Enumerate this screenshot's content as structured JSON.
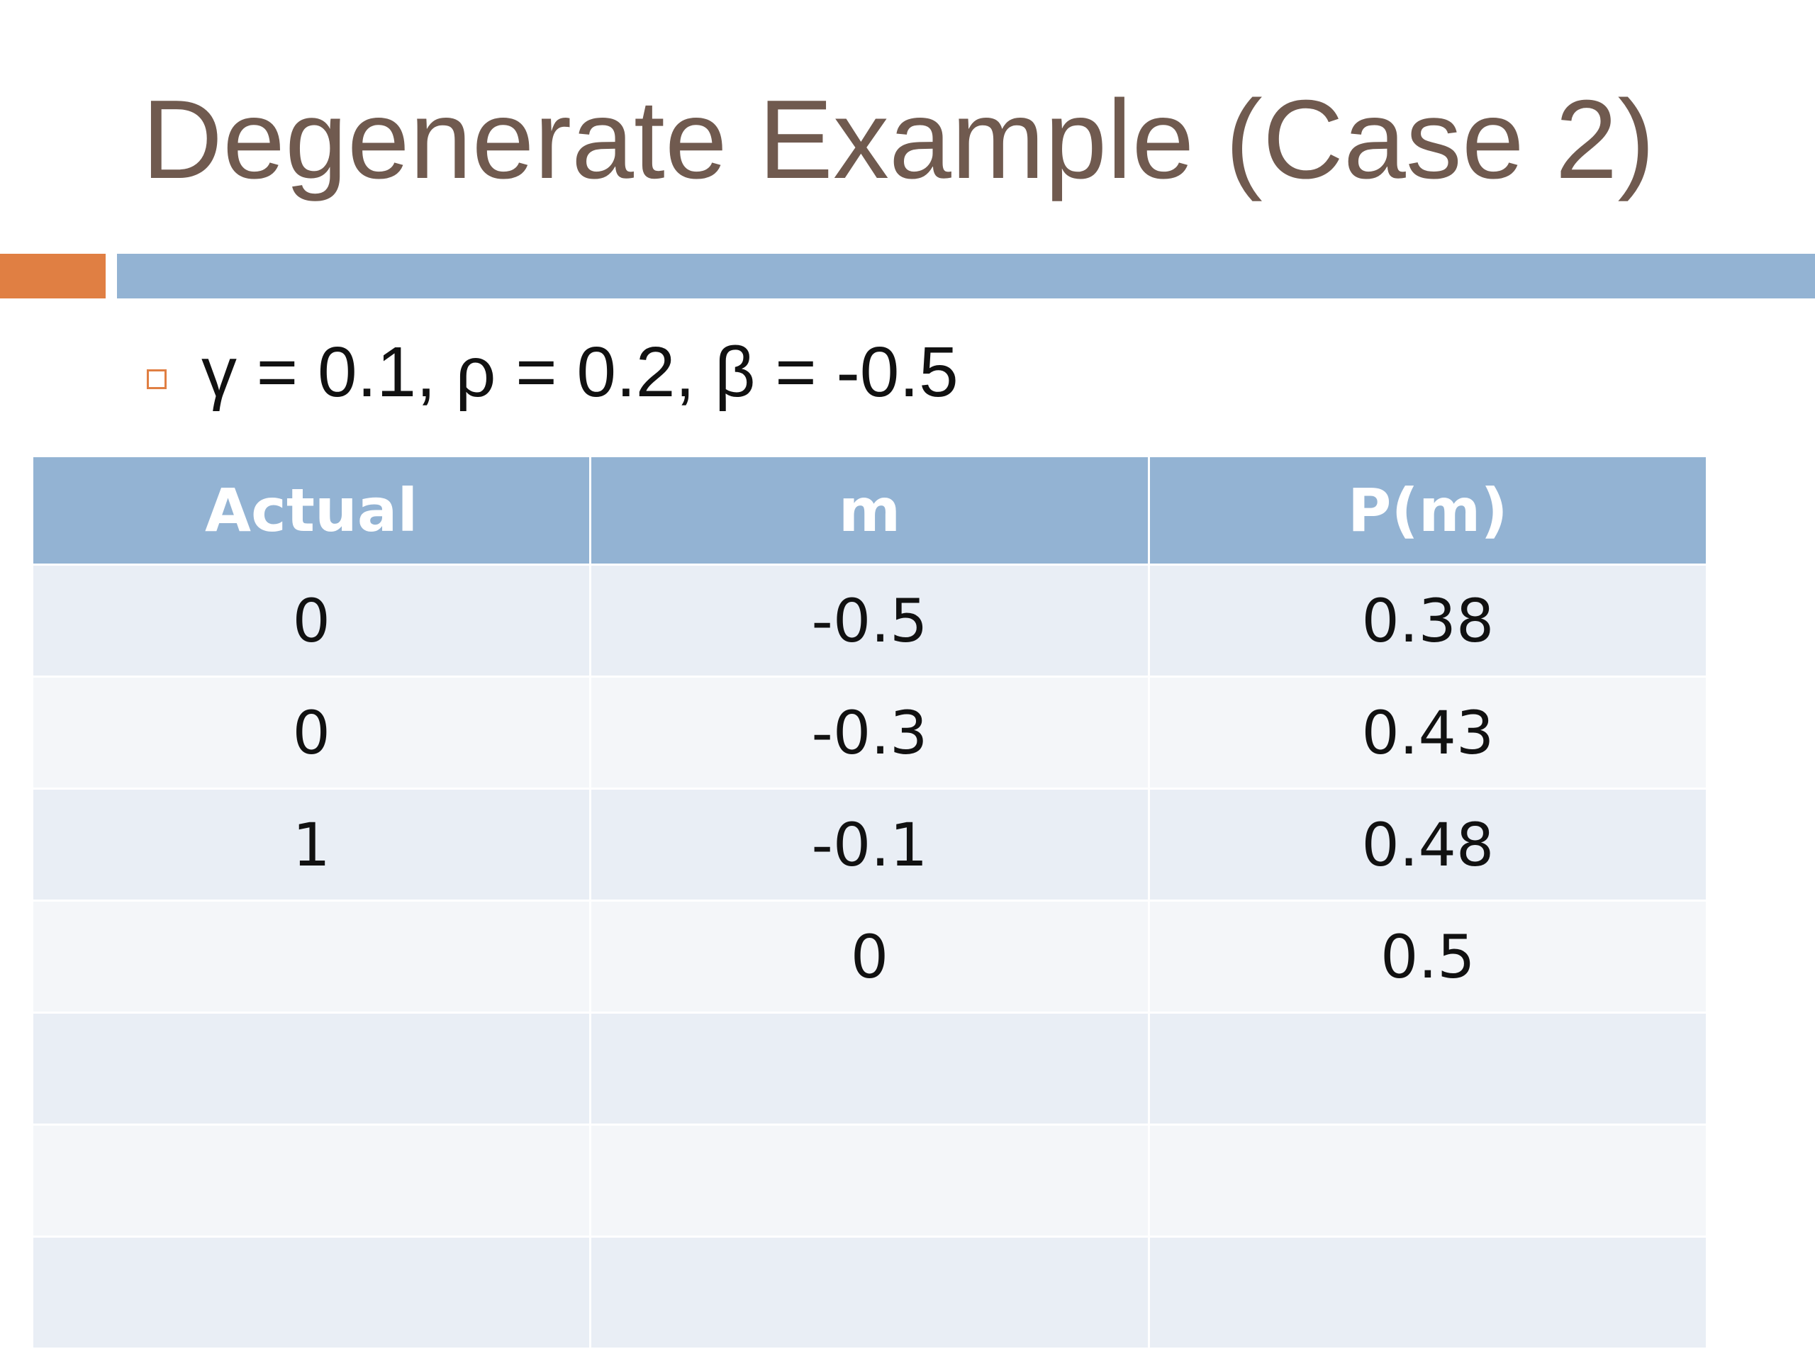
{
  "header": {
    "title": "Degenerate Example (Case 2)"
  },
  "bullets": [
    "γ = 0.1, ρ = 0.2, β = -0.5"
  ],
  "table": {
    "header": [
      "Actual",
      "m",
      "P(m)"
    ],
    "rows": [
      [
        "0",
        "-0.5",
        "0.38"
      ],
      [
        "0",
        "-0.3",
        "0.43"
      ],
      [
        "1",
        "-0.1",
        "0.48"
      ],
      [
        null,
        "0",
        "0.5"
      ]
    ]
  }
}
